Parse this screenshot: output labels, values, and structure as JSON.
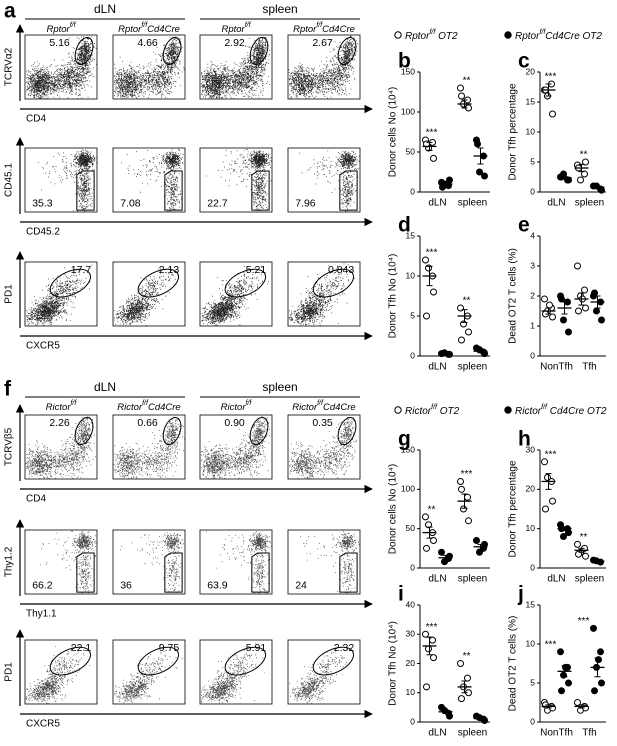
{
  "figure_a": {
    "letter": "a",
    "groups": [
      "dLN",
      "spleen"
    ],
    "genotypes": [
      {
        "base": "Rptor",
        "sup": "f/f"
      },
      {
        "base": "Rptor",
        "sup": "f/f",
        "tail": "Cd4Cre"
      },
      {
        "base": "Rptor",
        "sup": "f/f"
      },
      {
        "base": "Rptor",
        "sup": "f/f",
        "tail": "Cd4Cre"
      }
    ],
    "rows": [
      {
        "ylabel": "TCRVα2",
        "xlabel": "CD4",
        "gate_values": [
          "5.16",
          "4.66",
          "2.92",
          "2.67"
        ]
      },
      {
        "ylabel": "CD45.1",
        "xlabel": "CD45.2",
        "gate_values": [
          "35.3",
          "7.08",
          "22.7",
          "7.96"
        ]
      },
      {
        "ylabel": "PD1",
        "xlabel": "CXCR5",
        "gate_values": [
          "17.7",
          "2.13",
          "5.21",
          "0.843"
        ]
      }
    ]
  },
  "figure_f": {
    "letter": "f",
    "groups": [
      "dLN",
      "spleen"
    ],
    "genotypes": [
      {
        "base": "Rictor",
        "sup": "f/f"
      },
      {
        "base": "Rictor",
        "sup": "f/f",
        "tail": "Cd4Cre"
      },
      {
        "base": "Rictor",
        "sup": "f/f"
      },
      {
        "base": "Rictor",
        "sup": "f/f",
        "tail": "Cd4Cre"
      }
    ],
    "rows": [
      {
        "ylabel": "TCRVβ5",
        "xlabel": "CD4",
        "gate_values": [
          "2.26",
          "0.66",
          "0.90",
          "0.35"
        ]
      },
      {
        "ylabel": "Thy1.2",
        "xlabel": "Thy1.1",
        "gate_values": [
          "66.2",
          "36",
          "63.9",
          "24"
        ]
      },
      {
        "ylabel": "PD1",
        "xlabel": "CXCR5",
        "gate_values": [
          "22.1",
          "9.75",
          "5.91",
          "2.32"
        ]
      }
    ]
  },
  "legend_top": [
    {
      "base": "Rptor",
      "sup": "f/f",
      "tail": " OT2",
      "filled": false
    },
    {
      "base": "Rptor",
      "sup": "f/f",
      "tail": "Cd4Cre OT2",
      "filled": true
    }
  ],
  "legend_bottom": [
    {
      "base": "Rictor",
      "sup": "f/f",
      "tail": " OT2",
      "filled": false
    },
    {
      "base": "Rictor",
      "sup": "f/f",
      "tail": " Cd4Cre OT2",
      "filled": true
    }
  ],
  "chart_data": [
    {
      "type": "dot",
      "letter": "b",
      "ylabel": "Donor cells No (10⁴)",
      "categories": [
        "dLN",
        "spleen"
      ],
      "ylim": [
        0,
        150
      ],
      "yticks": [
        0,
        50,
        100,
        150
      ],
      "annotations": [
        "***",
        "**"
      ],
      "series": [
        {
          "filled": false,
          "color": "#000000",
          "values": [
            [
              65,
              62,
              55,
              42,
              60
            ],
            [
              130,
              115,
              110,
              105,
              120
            ]
          ],
          "means": [
            57,
            110
          ],
          "sems": [
            5,
            5
          ]
        },
        {
          "filled": true,
          "color": "#000000",
          "values": [
            [
              12,
              8,
              10,
              15,
              6
            ],
            [
              65,
              45,
              25,
              20,
              60
            ]
          ],
          "means": [
            10,
            45
          ],
          "sems": [
            2,
            10
          ]
        }
      ]
    },
    {
      "type": "dot",
      "letter": "c",
      "ylabel": "Donor Tfh percentage",
      "categories": [
        "dLN",
        "spleen"
      ],
      "ylim": [
        0,
        20
      ],
      "yticks": [
        0,
        5,
        10,
        15,
        20
      ],
      "annotations": [
        "***",
        "**"
      ],
      "series": [
        {
          "filled": false,
          "color": "#000000",
          "values": [
            [
              17,
              18,
              16,
              13,
              17
            ],
            [
              4.5,
              3,
              2,
              5,
              4
            ]
          ],
          "means": [
            17,
            4
          ],
          "sems": [
            1,
            0.6
          ]
        },
        {
          "filled": true,
          "color": "#000000",
          "values": [
            [
              2.5,
              2,
              3,
              2,
              2.5
            ],
            [
              1,
              0.5,
              1,
              0.3
            ]
          ],
          "means": [
            2.4,
            0.8
          ],
          "sems": [
            0.2,
            0.2
          ]
        }
      ]
    },
    {
      "type": "dot",
      "letter": "d",
      "ylabel": "Donor Tfh No (10⁴)",
      "categories": [
        "dLN",
        "spleen"
      ],
      "ylim": [
        0,
        15
      ],
      "yticks": [
        0,
        5,
        10,
        15
      ],
      "annotations": [
        "***",
        "**"
      ],
      "series": [
        {
          "filled": false,
          "color": "#000000",
          "values": [
            [
              12,
              10,
              11,
              8,
              5
            ],
            [
              6,
              5,
              4,
              3,
              2
            ]
          ],
          "means": [
            10,
            5
          ],
          "sems": [
            1.2,
            0.8
          ]
        },
        {
          "filled": true,
          "color": "#000000",
          "values": [
            [
              0.3,
              0.2,
              0.4,
              0.2
            ],
            [
              1,
              0.5,
              0.8,
              0.3
            ]
          ],
          "means": [
            0.3,
            0.6
          ],
          "sems": [
            0.1,
            0.2
          ]
        }
      ]
    },
    {
      "type": "dot",
      "letter": "e",
      "ylabel": "Dead  OT2 T cells (%)",
      "categories": [
        "NonTfh",
        "Tfh"
      ],
      "ylim": [
        0,
        4
      ],
      "yticks": [
        0,
        1,
        2,
        3,
        4
      ],
      "series": [
        {
          "filled": false,
          "color": "#000000",
          "values": [
            [
              1.9,
              1.6,
              1.5,
              1.3,
              1.4,
              1.7
            ],
            [
              3.0,
              2.2,
              2.0,
              1.6,
              1.5,
              1.9
            ]
          ],
          "means": [
            1.5,
            1.9
          ],
          "sems": [
            0.1,
            0.2
          ]
        },
        {
          "filled": true,
          "color": "#000000",
          "values": [
            [
              2.0,
              1.8,
              1.2,
              0.8,
              1.9
            ],
            [
              2.0,
              1.8,
              1.5,
              1.2,
              2.1
            ]
          ],
          "means": [
            1.6,
            1.8
          ],
          "sems": [
            0.2,
            0.2
          ]
        }
      ]
    },
    {
      "type": "dot",
      "letter": "g",
      "ylabel": "Donor cells No (10⁴)",
      "categories": [
        "dLN",
        "spleen"
      ],
      "ylim": [
        0,
        150
      ],
      "yticks": [
        0,
        50,
        100,
        150
      ],
      "annotations": [
        "**",
        "***"
      ],
      "series": [
        {
          "filled": false,
          "color": "#000000",
          "values": [
            [
              65,
              45,
              55,
              35,
              25
            ],
            [
              110,
              90,
              75,
              60,
              100
            ]
          ],
          "means": [
            45,
            85
          ],
          "sems": [
            7,
            9
          ]
        },
        {
          "filled": true,
          "color": "#000000",
          "values": [
            [
              20,
              12,
              8,
              15
            ],
            [
              35,
              25,
              20,
              30
            ]
          ],
          "means": [
            13,
            27
          ],
          "sems": [
            3,
            3
          ]
        }
      ]
    },
    {
      "type": "dot",
      "letter": "h",
      "ylabel": "Donor Tfh percentage",
      "categories": [
        "dLN",
        "spleen"
      ],
      "ylim": [
        0,
        30
      ],
      "yticks": [
        0,
        10,
        20,
        30
      ],
      "annotations": [
        "***",
        "**"
      ],
      "series": [
        {
          "filled": false,
          "color": "#000000",
          "values": [
            [
              27,
              22,
              23,
              17,
              15
            ],
            [
              6,
              5,
              4,
              3,
              3.5
            ]
          ],
          "means": [
            22,
            4.5
          ],
          "sems": [
            2,
            0.5
          ]
        },
        {
          "filled": true,
          "color": "#000000",
          "values": [
            [
              11,
              10,
              8,
              9,
              10
            ],
            [
              2,
              1.5,
              1.8
            ]
          ],
          "means": [
            10,
            1.7
          ],
          "sems": [
            0.5,
            0.2
          ]
        }
      ]
    },
    {
      "type": "dot",
      "letter": "i",
      "ylabel": "Donor Tfh No (10⁴)",
      "categories": [
        "dLN",
        "spleen"
      ],
      "ylim": [
        0,
        40
      ],
      "yticks": [
        0,
        10,
        20,
        30,
        40
      ],
      "annotations": [
        "***",
        "**"
      ],
      "series": [
        {
          "filled": false,
          "color": "#000000",
          "values": [
            [
              30,
              28,
              25,
              22,
              12
            ],
            [
              20,
              15,
              12,
              10,
              8
            ]
          ],
          "means": [
            26,
            12
          ],
          "sems": [
            3,
            2
          ]
        },
        {
          "filled": true,
          "color": "#000000",
          "values": [
            [
              5,
              3,
              4,
              2
            ],
            [
              2,
              1,
              1.5,
              0.5
            ]
          ],
          "means": [
            3.5,
            1.2
          ],
          "sems": [
            0.6,
            0.3
          ]
        }
      ]
    },
    {
      "type": "dot",
      "letter": "j",
      "ylabel": "Dead  OT2 T cells (%)",
      "categories": [
        "NonTfh",
        "Tfh"
      ],
      "ylim": [
        0,
        15
      ],
      "yticks": [
        0,
        5,
        10,
        15
      ],
      "annotations": [
        "***",
        "***"
      ],
      "series": [
        {
          "filled": false,
          "color": "#000000",
          "values": [
            [
              2.5,
              2,
              1.5,
              1.8,
              2.2
            ],
            [
              2.5,
              2,
              1.5,
              1.8
            ]
          ],
          "means": [
            2,
            2
          ],
          "sems": [
            0.2,
            0.2
          ]
        },
        {
          "filled": true,
          "color": "#000000",
          "values": [
            [
              9,
              7,
              6,
              5,
              4,
              7
            ],
            [
              12,
              9,
              7,
              5,
              4,
              8
            ]
          ],
          "means": [
            6.5,
            7
          ],
          "sems": [
            0.7,
            1.2
          ]
        }
      ]
    }
  ]
}
